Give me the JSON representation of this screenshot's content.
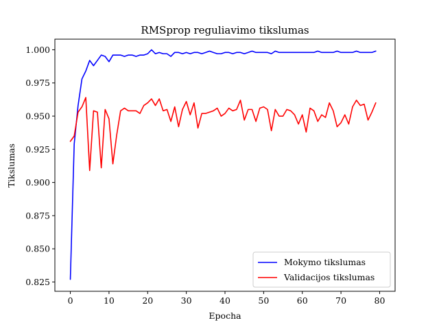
{
  "chart_data": {
    "type": "line",
    "title": "RMSprop reguliavimo tikslumas",
    "xlabel": "Epocha",
    "ylabel": "Tikslumas",
    "xlim": [
      -4,
      84
    ],
    "ylim": [
      0.818,
      1.008
    ],
    "xticks": [
      "0",
      "10",
      "20",
      "30",
      "40",
      "50",
      "60",
      "70",
      "80"
    ],
    "yticks": [
      "0.825",
      "0.850",
      "0.875",
      "0.900",
      "0.925",
      "0.950",
      "0.975",
      "1.000"
    ],
    "grid": false,
    "legend_position": "lower-right",
    "series": [
      {
        "name": "Mokymo tikslumas",
        "color": "#0000ff",
        "values": [
          0.827,
          0.929,
          0.958,
          0.978,
          0.984,
          0.992,
          0.988,
          0.992,
          0.996,
          0.995,
          0.991,
          0.996,
          0.996,
          0.996,
          0.995,
          0.996,
          0.996,
          0.995,
          0.996,
          0.996,
          0.997,
          1.0,
          0.997,
          0.998,
          0.997,
          0.997,
          0.995,
          0.998,
          0.998,
          0.997,
          0.998,
          0.997,
          0.998,
          0.998,
          0.997,
          0.998,
          0.999,
          0.998,
          0.997,
          0.997,
          0.998,
          0.998,
          0.997,
          0.998,
          0.998,
          0.997,
          0.998,
          0.999,
          0.998,
          0.998,
          0.998,
          0.998,
          0.997,
          0.999,
          0.998,
          0.998,
          0.998,
          0.998,
          0.998,
          0.998,
          0.998,
          0.998,
          0.998,
          0.998,
          0.999,
          0.998,
          0.998,
          0.998,
          0.998,
          0.999,
          0.998,
          0.998,
          0.998,
          0.998,
          0.999,
          0.998,
          0.998,
          0.998,
          0.998,
          0.999
        ]
      },
      {
        "name": "Validacijos tikslumas",
        "color": "#ff0000",
        "values": [
          0.931,
          0.935,
          0.953,
          0.957,
          0.964,
          0.909,
          0.954,
          0.953,
          0.911,
          0.955,
          0.948,
          0.914,
          0.936,
          0.954,
          0.956,
          0.954,
          0.954,
          0.954,
          0.952,
          0.958,
          0.96,
          0.963,
          0.958,
          0.963,
          0.954,
          0.955,
          0.946,
          0.957,
          0.942,
          0.955,
          0.961,
          0.951,
          0.96,
          0.941,
          0.952,
          0.952,
          0.953,
          0.954,
          0.956,
          0.95,
          0.952,
          0.956,
          0.954,
          0.955,
          0.962,
          0.947,
          0.955,
          0.955,
          0.946,
          0.956,
          0.957,
          0.955,
          0.939,
          0.955,
          0.95,
          0.95,
          0.955,
          0.954,
          0.951,
          0.944,
          0.951,
          0.938,
          0.956,
          0.954,
          0.946,
          0.951,
          0.949,
          0.96,
          0.954,
          0.942,
          0.945,
          0.951,
          0.944,
          0.957,
          0.962,
          0.958,
          0.959,
          0.947,
          0.953,
          0.96
        ]
      }
    ]
  }
}
